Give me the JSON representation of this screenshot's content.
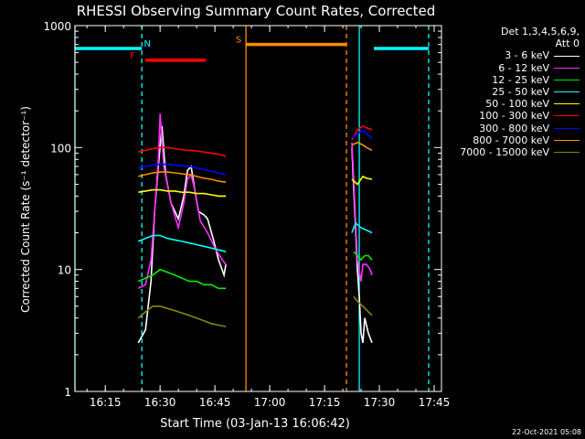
{
  "chart_data": {
    "type": "line",
    "title": "RHESSI Observing Summary Count Rates, Corrected",
    "xlabel": "Start Time (03-Jan-13 16:06:42)",
    "ylabel": "Corrected Count Rate (s⁻¹ detector⁻¹)",
    "y_scale": "log",
    "xlim": [
      "16:06:42",
      "17:47:00"
    ],
    "ylim": [
      1,
      1000
    ],
    "x_ticks": [
      "16:15",
      "16:30",
      "16:45",
      "17:00",
      "17:15",
      "17:30",
      "17:45"
    ],
    "y_ticks": [
      "1",
      "10",
      "100",
      "1000"
    ],
    "legend_header": [
      "Det 1,3,4,5,6,9,",
      "Att 0"
    ],
    "series": [
      {
        "name": "3 - 6 keV",
        "color": "#ffffff",
        "segments": [
          [
            [
              "16:24:00",
              2.5
            ],
            [
              "16:26:00",
              3.2
            ],
            [
              "16:27:30",
              8
            ],
            [
              "16:28:30",
              30
            ],
            [
              "16:29:30",
              70
            ],
            [
              "16:30:30",
              150
            ],
            [
              "16:31:30",
              60
            ],
            [
              "16:33:00",
              35
            ],
            [
              "16:35:00",
              26
            ],
            [
              "16:36:30",
              40
            ],
            [
              "16:37:30",
              65
            ],
            [
              "16:38:30",
              70
            ],
            [
              "16:39:30",
              45
            ],
            [
              "16:40:30",
              30
            ],
            [
              "16:42:00",
              28
            ],
            [
              "16:43:00",
              26
            ],
            [
              "16:44:30",
              18
            ],
            [
              "16:46:00",
              12
            ],
            [
              "16:47:30",
              9
            ],
            [
              "16:48:00",
              11
            ]
          ],
          [
            [
              "17:22:30",
              100
            ],
            [
              "17:23:00",
              45
            ],
            [
              "17:23:30",
              22
            ],
            [
              "17:24:00",
              10
            ],
            [
              "17:24:30",
              6
            ],
            [
              "17:25:00",
              3
            ],
            [
              "17:25:30",
              2.5
            ],
            [
              "17:26:00",
              4
            ],
            [
              "17:27:00",
              3
            ],
            [
              "17:28:00",
              2.5
            ]
          ]
        ]
      },
      {
        "name": "6 - 12 keV",
        "color": "#ff2bff",
        "segments": [
          [
            [
              "16:24:00",
              7
            ],
            [
              "16:26:00",
              7.5
            ],
            [
              "16:27:30",
              12
            ],
            [
              "16:28:30",
              30
            ],
            [
              "16:29:30",
              80
            ],
            [
              "16:30:00",
              190
            ],
            [
              "16:31:00",
              70
            ],
            [
              "16:33:00",
              35
            ],
            [
              "16:35:00",
              22
            ],
            [
              "16:36:30",
              35
            ],
            [
              "16:37:30",
              55
            ],
            [
              "16:38:30",
              60
            ],
            [
              "16:39:30",
              45
            ],
            [
              "16:41:00",
              25
            ],
            [
              "16:43:00",
              20
            ],
            [
              "16:45:00",
              15
            ],
            [
              "16:47:00",
              12
            ],
            [
              "16:48:00",
              11
            ]
          ],
          [
            [
              "17:22:30",
              110
            ],
            [
              "17:23:00",
              55
            ],
            [
              "17:23:30",
              25
            ],
            [
              "17:24:00",
              12
            ],
            [
              "17:25:00",
              8
            ],
            [
              "17:25:30",
              11
            ],
            [
              "17:26:30",
              11
            ],
            [
              "17:27:30",
              10
            ],
            [
              "17:28:00",
              9
            ]
          ]
        ]
      },
      {
        "name": "12 - 25 keV",
        "color": "#00ee00",
        "segments": [
          [
            [
              "16:24:00",
              8
            ],
            [
              "16:26:00",
              8.5
            ],
            [
              "16:28:00",
              9
            ],
            [
              "16:30:00",
              10
            ],
            [
              "16:32:00",
              9.5
            ],
            [
              "16:34:00",
              9
            ],
            [
              "16:36:00",
              8.5
            ],
            [
              "16:38:00",
              8
            ],
            [
              "16:40:00",
              8
            ],
            [
              "16:42:00",
              7.5
            ],
            [
              "16:44:00",
              7.5
            ],
            [
              "16:46:00",
              7
            ],
            [
              "16:48:00",
              7
            ]
          ],
          [
            [
              "17:23:00",
              14
            ],
            [
              "17:24:00",
              13
            ],
            [
              "17:25:00",
              12
            ],
            [
              "17:26:00",
              13
            ],
            [
              "17:27:00",
              13
            ],
            [
              "17:28:00",
              12
            ]
          ]
        ]
      },
      {
        "name": "25 - 50 keV",
        "color": "#00ffff",
        "segments": [
          [
            [
              "16:24:00",
              17
            ],
            [
              "16:26:00",
              18
            ],
            [
              "16:28:00",
              19
            ],
            [
              "16:30:00",
              19
            ],
            [
              "16:32:00",
              18
            ],
            [
              "16:34:00",
              17.5
            ],
            [
              "16:36:00",
              17
            ],
            [
              "16:38:00",
              16.5
            ],
            [
              "16:40:00",
              16
            ],
            [
              "16:42:00",
              15.5
            ],
            [
              "16:44:00",
              15
            ],
            [
              "16:46:00",
              14.5
            ],
            [
              "16:48:00",
              14
            ]
          ],
          [
            [
              "17:22:30",
              20
            ],
            [
              "17:23:30",
              24
            ],
            [
              "17:25:00",
              22
            ],
            [
              "17:26:30",
              21
            ],
            [
              "17:28:00",
              20
            ]
          ]
        ]
      },
      {
        "name": "50 - 100 keV",
        "color": "#ffff00",
        "segments": [
          [
            [
              "16:24:00",
              43
            ],
            [
              "16:26:00",
              44
            ],
            [
              "16:28:00",
              45
            ],
            [
              "16:30:00",
              45
            ],
            [
              "16:32:00",
              44
            ],
            [
              "16:34:00",
              44
            ],
            [
              "16:36:00",
              43
            ],
            [
              "16:38:00",
              43
            ],
            [
              "16:40:00",
              42
            ],
            [
              "16:42:00",
              42
            ],
            [
              "16:44:00",
              41
            ],
            [
              "16:46:00",
              40
            ],
            [
              "16:48:00",
              40
            ]
          ],
          [
            [
              "17:22:30",
              55
            ],
            [
              "17:24:00",
              50
            ],
            [
              "17:25:30",
              58
            ],
            [
              "17:26:30",
              56
            ],
            [
              "17:28:00",
              55
            ]
          ]
        ]
      },
      {
        "name": "100 - 300 keV",
        "color": "#ff0000",
        "segments": [
          [
            [
              "16:24:00",
              92
            ],
            [
              "16:26:00",
              95
            ],
            [
              "16:28:00",
              98
            ],
            [
              "16:30:00",
              100
            ],
            [
              "16:32:00",
              100
            ],
            [
              "16:34:00",
              98
            ],
            [
              "16:36:00",
              96
            ],
            [
              "16:38:00",
              95
            ],
            [
              "16:40:00",
              94
            ],
            [
              "16:42:00",
              92
            ],
            [
              "16:44:00",
              90
            ],
            [
              "16:46:00",
              88
            ],
            [
              "16:48:00",
              85
            ]
          ],
          [
            [
              "17:22:30",
              115
            ],
            [
              "17:24:00",
              140
            ],
            [
              "17:25:30",
              150
            ],
            [
              "17:26:30",
              145
            ],
            [
              "17:28:00",
              140
            ]
          ]
        ]
      },
      {
        "name": "300 - 800 keV",
        "color": "#0000ff",
        "segments": [
          [
            [
              "16:24:00",
              68
            ],
            [
              "16:26:00",
              70
            ],
            [
              "16:28:00",
              72
            ],
            [
              "16:30:00",
              73
            ],
            [
              "16:32:00",
              73
            ],
            [
              "16:34:00",
              72
            ],
            [
              "16:36:00",
              71
            ],
            [
              "16:38:00",
              70
            ],
            [
              "16:40:00",
              68
            ],
            [
              "16:42:00",
              66
            ],
            [
              "16:44:00",
              64
            ],
            [
              "16:46:00",
              62
            ],
            [
              "16:48:00",
              60
            ]
          ],
          [
            [
              "17:22:30",
              120
            ],
            [
              "17:24:00",
              130
            ],
            [
              "17:25:30",
              140
            ],
            [
              "17:26:30",
              130
            ],
            [
              "17:28:00",
              120
            ]
          ]
        ]
      },
      {
        "name": "800 - 7000 keV",
        "color": "#ff8c00",
        "segments": [
          [
            [
              "16:24:00",
              58
            ],
            [
              "16:26:00",
              60
            ],
            [
              "16:28:00",
              62
            ],
            [
              "16:30:00",
              63
            ],
            [
              "16:32:00",
              63
            ],
            [
              "16:34:00",
              62
            ],
            [
              "16:36:00",
              61
            ],
            [
              "16:38:00",
              60
            ],
            [
              "16:40:00",
              58
            ],
            [
              "16:42:00",
              56
            ],
            [
              "16:44:00",
              55
            ],
            [
              "16:46:00",
              53
            ],
            [
              "16:48:00",
              52
            ]
          ],
          [
            [
              "17:22:30",
              105
            ],
            [
              "17:24:00",
              110
            ],
            [
              "17:25:30",
              105
            ],
            [
              "17:26:30",
              100
            ],
            [
              "17:28:00",
              95
            ]
          ]
        ]
      },
      {
        "name": "7000 - 15000 keV",
        "color": "#888800",
        "segments": [
          [
            [
              "16:24:00",
              4
            ],
            [
              "16:26:00",
              4.5
            ],
            [
              "16:28:00",
              5
            ],
            [
              "16:30:00",
              5
            ],
            [
              "16:32:00",
              4.8
            ],
            [
              "16:34:00",
              4.6
            ],
            [
              "16:36:00",
              4.4
            ],
            [
              "16:38:00",
              4.2
            ],
            [
              "16:40:00",
              4
            ],
            [
              "16:42:00",
              3.8
            ],
            [
              "16:44:00",
              3.6
            ],
            [
              "16:46:00",
              3.5
            ],
            [
              "16:48:00",
              3.4
            ]
          ],
          [
            [
              "17:23:00",
              6
            ],
            [
              "17:24:00",
              5.5
            ],
            [
              "17:25:30",
              5
            ],
            [
              "17:27:00",
              4.5
            ],
            [
              "17:28:00",
              4.2
            ]
          ]
        ]
      }
    ],
    "intervals": [
      {
        "label": "N",
        "color": "#00ffff",
        "level": 650,
        "label_at": "16:26:30",
        "bars": [
          [
            "16:06:42",
            "16:25:00"
          ],
          [
            "17:28:30",
            "17:43:30"
          ]
        ]
      },
      {
        "label": "F",
        "color": "#ff0000",
        "level": 520,
        "label_at": "16:22:30",
        "bars": [
          [
            "16:26:00",
            "16:42:30"
          ]
        ]
      },
      {
        "label": "S",
        "color": "#ff8c00",
        "level": 700,
        "label_at": "16:51:30",
        "bars": [
          [
            "16:53:30",
            "17:21:00"
          ]
        ]
      }
    ],
    "boundaries": [
      {
        "time": "16:06:42",
        "color": "#00ffff",
        "style": "solid"
      },
      {
        "time": "16:25:00",
        "color": "#00ffff",
        "style": "dashed"
      },
      {
        "time": "16:53:30",
        "color": "#ff8c00",
        "style": "solid"
      },
      {
        "time": "17:21:00",
        "color": "#ff8c00",
        "style": "dashed"
      },
      {
        "time": "17:24:30",
        "color": "#00ffff",
        "style": "solid"
      },
      {
        "time": "17:43:30",
        "color": "#00ffff",
        "style": "dashed"
      }
    ]
  },
  "date_stamp": "22-Oct-2021 05:08"
}
